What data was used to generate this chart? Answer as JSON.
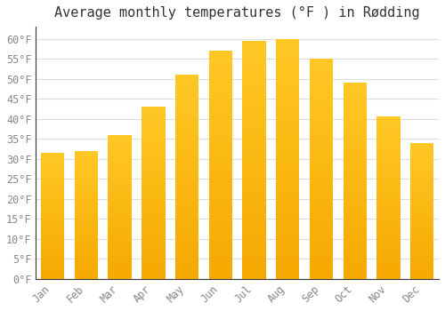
{
  "title": "Average monthly temperatures (°F ) in Rødding",
  "months": [
    "Jan",
    "Feb",
    "Mar",
    "Apr",
    "May",
    "Jun",
    "Jul",
    "Aug",
    "Sep",
    "Oct",
    "Nov",
    "Dec"
  ],
  "values": [
    31.5,
    32.0,
    36.0,
    43.0,
    51.0,
    57.0,
    59.5,
    60.0,
    55.0,
    49.0,
    40.5,
    34.0
  ],
  "bar_color_top": "#FFC825",
  "bar_color_bottom": "#F5A800",
  "background_color": "#FFFFFF",
  "grid_color": "#DDDDDD",
  "yticks": [
    0,
    5,
    10,
    15,
    20,
    25,
    30,
    35,
    40,
    45,
    50,
    55,
    60
  ],
  "ylim": [
    0,
    63
  ],
  "title_fontsize": 11,
  "tick_fontsize": 8.5
}
